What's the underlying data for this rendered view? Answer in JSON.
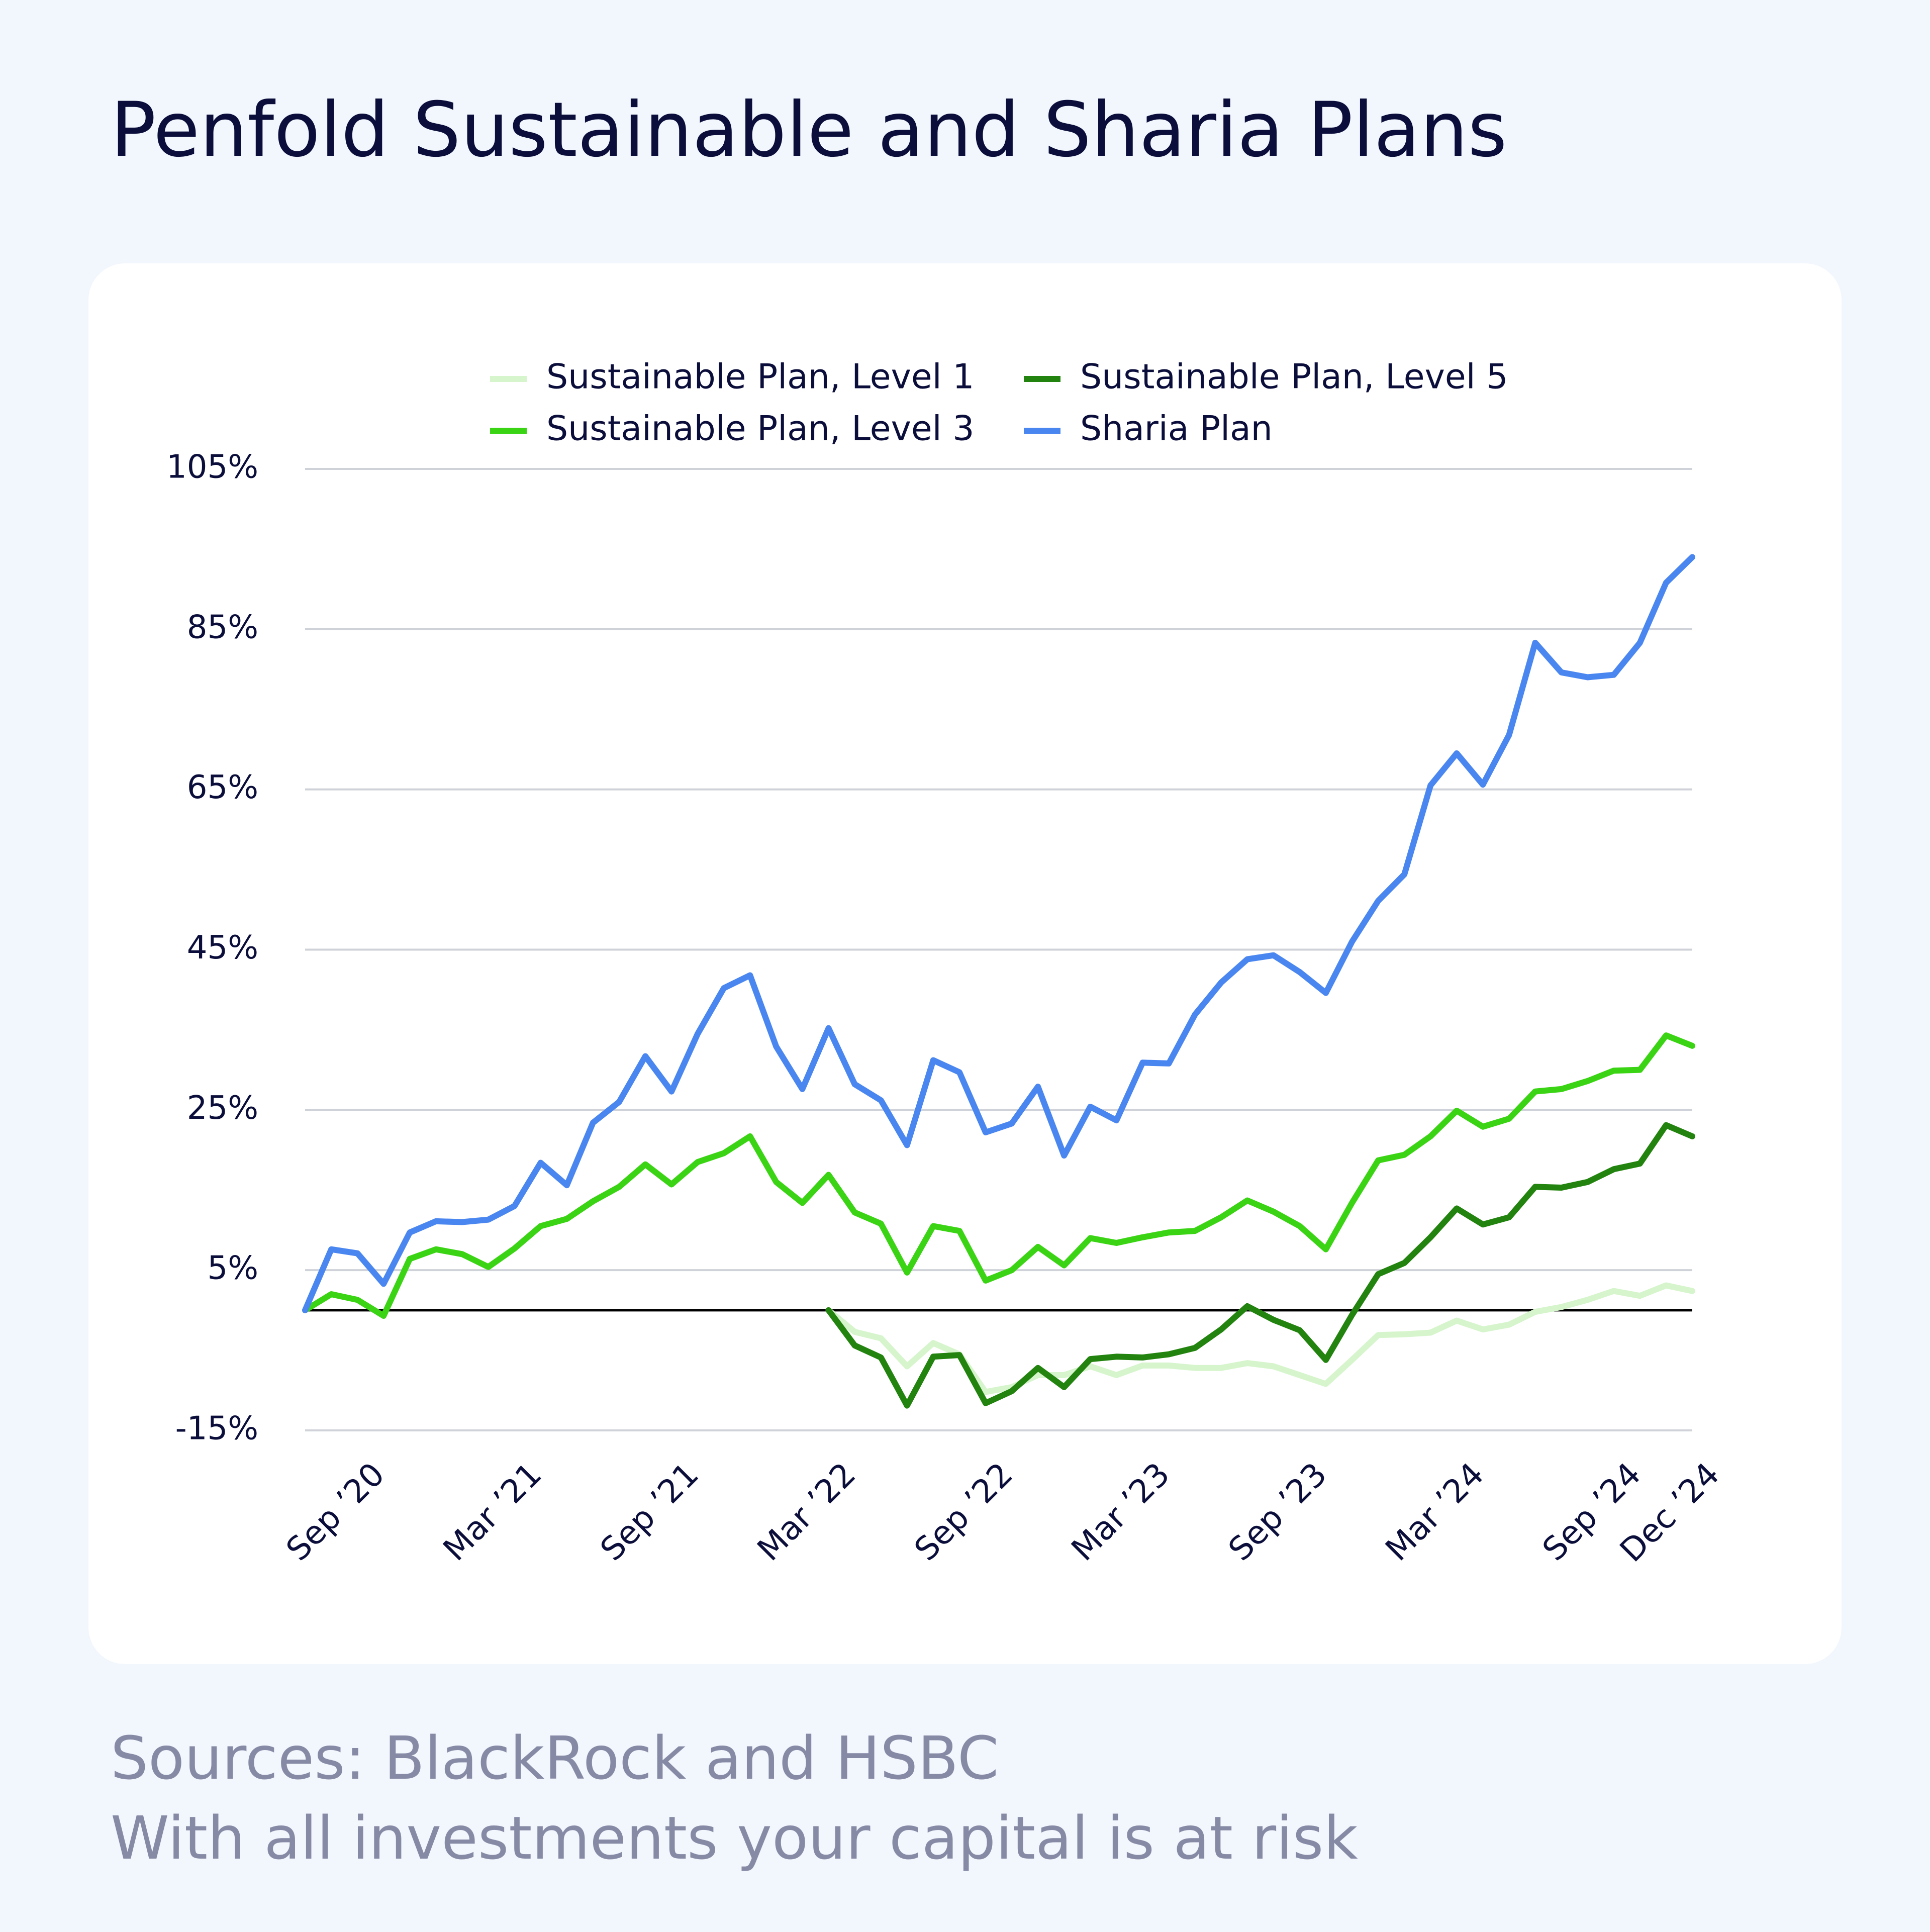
{
  "chart_data": {
    "type": "line",
    "title": "Penfold Sustainable and Sharia Plans",
    "categories": [
      null,
      null,
      "Sep ’20",
      null,
      null,
      null,
      null,
      null,
      "Mar ’21",
      null,
      null,
      null,
      null,
      null,
      "Sep ’21",
      null,
      null,
      null,
      null,
      null,
      "Mar ’22",
      null,
      null,
      null,
      null,
      null,
      "Sep ’22",
      null,
      null,
      null,
      null,
      null,
      "Mar ’23",
      null,
      null,
      null,
      null,
      null,
      "Sep ’23",
      null,
      null,
      null,
      null,
      null,
      "Mar ’24",
      null,
      null,
      null,
      null,
      null,
      "Sep ’24",
      null,
      null,
      "Dec ’24"
    ],
    "series": [
      {
        "name": "Sustainable Plan, Level 1",
        "color": "#d6f5cc",
        "values": [
          null,
          null,
          null,
          null,
          null,
          null,
          null,
          null,
          null,
          null,
          null,
          null,
          null,
          null,
          null,
          null,
          null,
          null,
          null,
          null,
          0,
          -2.7,
          -3.5,
          -7.0,
          -4.1,
          -5.5,
          -10.2,
          -9.6,
          -8.1,
          -8.1,
          -7.0,
          -8.1,
          -6.9,
          -6.9,
          -7.2,
          -7.2,
          -6.6,
          -7.0,
          -8.1,
          -9.2,
          -6.2,
          -3.1,
          -3.0,
          -2.8,
          -1.3,
          -2.4,
          -1.8,
          -0.2,
          0.4,
          1.3,
          2.4,
          1.8,
          3.1,
          2.4
        ]
      },
      {
        "name": "Sustainable Plan, Level 3",
        "color": "#3bd414",
        "values": [
          0,
          2.0,
          1.3,
          -0.7,
          6.4,
          7.6,
          7.0,
          5.4,
          7.7,
          10.5,
          11.4,
          13.6,
          15.4,
          18.2,
          15.7,
          18.5,
          19.6,
          21.7,
          16.0,
          13.4,
          16.9,
          12.2,
          10.8,
          4.7,
          10.5,
          9.9,
          3.7,
          5.0,
          7.9,
          5.6,
          9.0,
          8.4,
          9.1,
          9.7,
          9.9,
          11.6,
          13.7,
          12.3,
          10.5,
          7.6,
          13.4,
          18.7,
          19.4,
          21.7,
          24.9,
          22.9,
          23.9,
          27.3,
          27.6,
          28.6,
          29.9,
          30.0,
          34.3,
          33.0
        ]
      },
      {
        "name": "Sustainable Plan, Level 5",
        "color": "#23830f",
        "values": [
          null,
          null,
          null,
          null,
          null,
          null,
          null,
          null,
          null,
          null,
          null,
          null,
          null,
          null,
          null,
          null,
          null,
          null,
          null,
          null,
          0,
          -4.4,
          -5.9,
          -11.9,
          -5.8,
          -5.6,
          -11.6,
          -10.1,
          -7.2,
          -9.6,
          -6.1,
          -5.8,
          -5.9,
          -5.5,
          -4.7,
          -2.4,
          0.5,
          -1.2,
          -2.5,
          -6.2,
          -0.6,
          4.5,
          5.9,
          9.1,
          12.7,
          10.7,
          11.6,
          15.4,
          15.3,
          16.0,
          17.6,
          18.3,
          23.1,
          21.7
        ]
      },
      {
        "name": "Sharia Plan",
        "color": "#4a86f0",
        "values": [
          0,
          7.6,
          7.1,
          3.3,
          9.7,
          11.1,
          11.0,
          11.3,
          13.0,
          18.4,
          15.6,
          23.4,
          26.0,
          31.7,
          27.3,
          34.5,
          40.2,
          41.8,
          32.9,
          27.6,
          35.2,
          28.2,
          26.2,
          20.6,
          31.2,
          29.7,
          22.2,
          23.3,
          27.9,
          19.3,
          25.4,
          23.7,
          30.9,
          30.8,
          36.9,
          40.9,
          43.8,
          44.3,
          42.2,
          39.6,
          46.0,
          51.1,
          54.4,
          65.5,
          69.5,
          65.6,
          71.8,
          83.3,
          79.6,
          79.0,
          79.3,
          83.3,
          90.8,
          94.0
        ]
      }
    ],
    "ylim": [
      -15,
      105
    ],
    "yticks": [
      {
        "value": -15,
        "label": "-15%"
      },
      {
        "value": 5,
        "label": "5%"
      },
      {
        "value": 25,
        "label": "25%"
      },
      {
        "value": 45,
        "label": "45%"
      },
      {
        "value": 65,
        "label": "65%"
      },
      {
        "value": 85,
        "label": "85%"
      },
      {
        "value": 105,
        "label": "105%"
      }
    ],
    "grid": true,
    "legend": "top",
    "footnotes": [
      "Sources: BlackRock and HSBC",
      "With all investments your capital is at risk"
    ]
  }
}
